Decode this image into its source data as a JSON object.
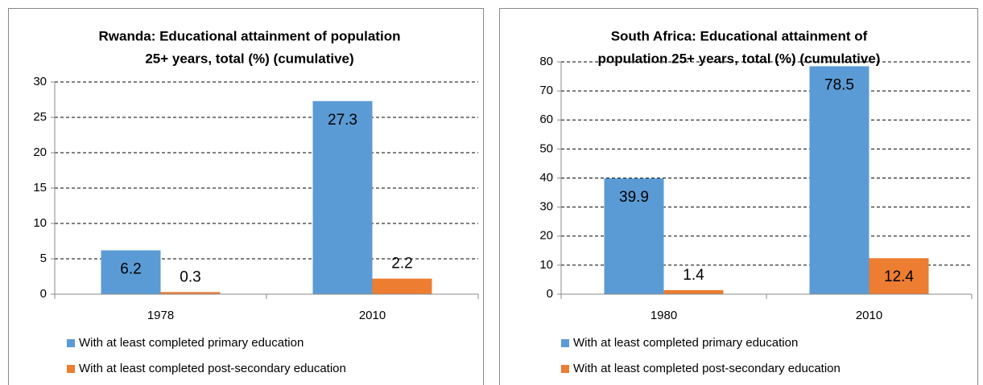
{
  "chart_data": [
    {
      "type": "bar",
      "title": [
        "Rwanda: Educational attainment of population",
        "25+ years, total (%) (cumulative)"
      ],
      "categories": [
        "1978",
        "2010"
      ],
      "series": [
        {
          "name": "With at least completed primary education",
          "color": "#5b9bd5",
          "values": [
            6.2,
            27.3
          ]
        },
        {
          "name": "With at least completed post-secondary education",
          "color": "#ed7d31",
          "values": [
            0.3,
            2.2
          ]
        }
      ],
      "ylim": [
        0,
        30
      ],
      "yticks": [
        0,
        5,
        10,
        15,
        20,
        25,
        30
      ],
      "grid": true,
      "legend": "bottom"
    },
    {
      "type": "bar",
      "title": [
        "South Africa: Educational attainment of",
        "population 25+ years, total (%) (cumulative)"
      ],
      "categories": [
        "1980",
        "2010"
      ],
      "series": [
        {
          "name": "With at least completed primary education",
          "color": "#5b9bd5",
          "values": [
            39.9,
            78.5
          ]
        },
        {
          "name": "With at least completed post-secondary education",
          "color": "#ed7d31",
          "values": [
            1.4,
            12.4
          ]
        }
      ],
      "ylim": [
        0,
        80
      ],
      "yticks": [
        0,
        10,
        20,
        30,
        40,
        50,
        60,
        70,
        80
      ],
      "grid": true,
      "legend": "bottom"
    }
  ]
}
